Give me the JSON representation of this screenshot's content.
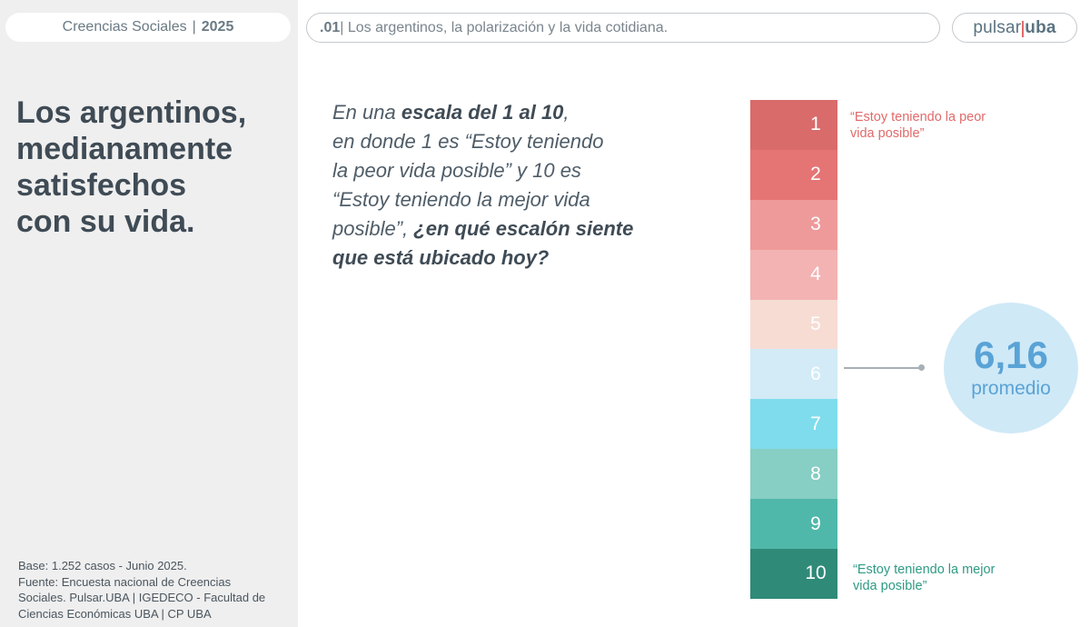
{
  "header": {
    "section": "Creencias Sociales",
    "separator": "|",
    "year": "2025",
    "topic_number": ".01",
    "topic_text": "| Los argentinos, la polarización y la vida cotidiana.",
    "logo_part1": "pulsar",
    "logo_part2": "uba"
  },
  "headline": {
    "lines": [
      "Los argentinos,",
      "medianamente",
      "satisfechos",
      "con su vida."
    ]
  },
  "question": {
    "l1_pre": "En una ",
    "l1_bold": "escala del 1 al 10",
    "l1_post": ",",
    "l2": "en donde 1 es “Estoy teniendo",
    "l3": "la peor vida posible” y 10 es",
    "l4": "“Estoy teniendo la mejor vida",
    "l5_pre": "posible”, ",
    "l5_bold": "¿en qué escalón siente",
    "l6_bold": "que está ubicado hoy?"
  },
  "scale": {
    "steps": [
      {
        "label": "1",
        "color": "#d96b6b"
      },
      {
        "label": "2",
        "color": "#e57474"
      },
      {
        "label": "3",
        "color": "#ef9a9a"
      },
      {
        "label": "4",
        "color": "#f3b3b3"
      },
      {
        "label": "5",
        "color": "#f6dcd3"
      },
      {
        "label": "6",
        "color": "#d2ebf7"
      },
      {
        "label": "7",
        "color": "#7fdcec"
      },
      {
        "label": "8",
        "color": "#87cec4"
      },
      {
        "label": "9",
        "color": "#4fb8aa"
      },
      {
        "label": "10",
        "color": "#2f8a78"
      }
    ],
    "worst_line1": "“Estoy teniendo la peor",
    "worst_line2": "vida posible”",
    "best_line1": "“Estoy teniendo la mejor",
    "best_line2": "vida posible”"
  },
  "average": {
    "value": "6,16",
    "caption": "promedio"
  },
  "footer": {
    "lines": [
      "Base: 1.252 casos - Junio 2025.",
      "Fuente: Encuesta nacional de Creencias",
      "Sociales. Pulsar.UBA | IGEDECO - Facultad de",
      "Ciencias Económicas UBA | CP UBA"
    ]
  }
}
